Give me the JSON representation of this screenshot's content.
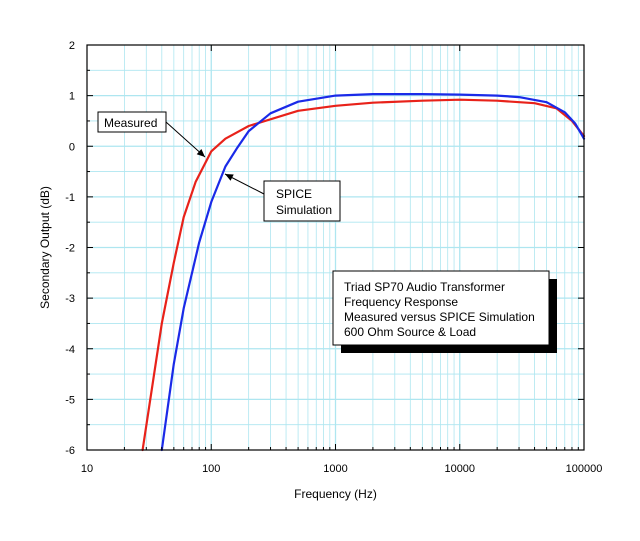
{
  "chart_data": {
    "type": "line",
    "xlabel": "Frequency (Hz)",
    "ylabel": "Secondary Output (dB)",
    "xscale": "log",
    "xlim": [
      10,
      100000
    ],
    "ylim": [
      -6,
      2
    ],
    "x_ticks": [
      10,
      100,
      1000,
      10000,
      100000
    ],
    "x_tick_labels": [
      "10",
      "100",
      "1000",
      "10000",
      "100000"
    ],
    "y_ticks": [
      -6,
      -5,
      -4,
      -3,
      -2,
      -1,
      0,
      1,
      2
    ],
    "y_tick_labels": [
      "-6",
      "-5",
      "-4",
      "-3",
      "-2",
      "-1",
      "0",
      "1",
      "2"
    ],
    "grid": true,
    "colors": {
      "measured": "#e8221a",
      "spice": "#1a2ae8",
      "grid": "#aee6f0"
    },
    "series": [
      {
        "name": "Measured",
        "x": [
          28,
          40,
          50,
          60,
          75,
          100,
          130,
          200,
          500,
          1000,
          2000,
          5000,
          10000,
          20000,
          40000,
          60000,
          80000,
          100000
        ],
        "y": [
          -6,
          -3.5,
          -2.3,
          -1.4,
          -0.7,
          -0.1,
          0.15,
          0.4,
          0.7,
          0.8,
          0.86,
          0.9,
          0.92,
          0.9,
          0.85,
          0.75,
          0.5,
          0.2
        ]
      },
      {
        "name": "SPICE Simulation",
        "x": [
          40,
          50,
          60,
          80,
          100,
          130,
          160,
          200,
          300,
          500,
          1000,
          2000,
          5000,
          10000,
          20000,
          30000,
          50000,
          70000,
          85000,
          100000
        ],
        "y": [
          -6,
          -4.3,
          -3.2,
          -1.9,
          -1.1,
          -0.4,
          -0.05,
          0.3,
          0.65,
          0.88,
          1.0,
          1.03,
          1.03,
          1.02,
          1.0,
          0.97,
          0.87,
          0.67,
          0.45,
          0.15
        ]
      }
    ],
    "annotations": [
      {
        "name": "measured-label",
        "text": [
          "Measured"
        ]
      },
      {
        "name": "spice-label",
        "text": [
          "SPICE",
          "Simulation"
        ]
      },
      {
        "name": "info-box",
        "text": [
          "Triad SP70 Audio Transformer",
          "Frequency Response",
          "Measured versus SPICE Simulation",
          "600 Ohm Source & Load"
        ]
      }
    ]
  }
}
